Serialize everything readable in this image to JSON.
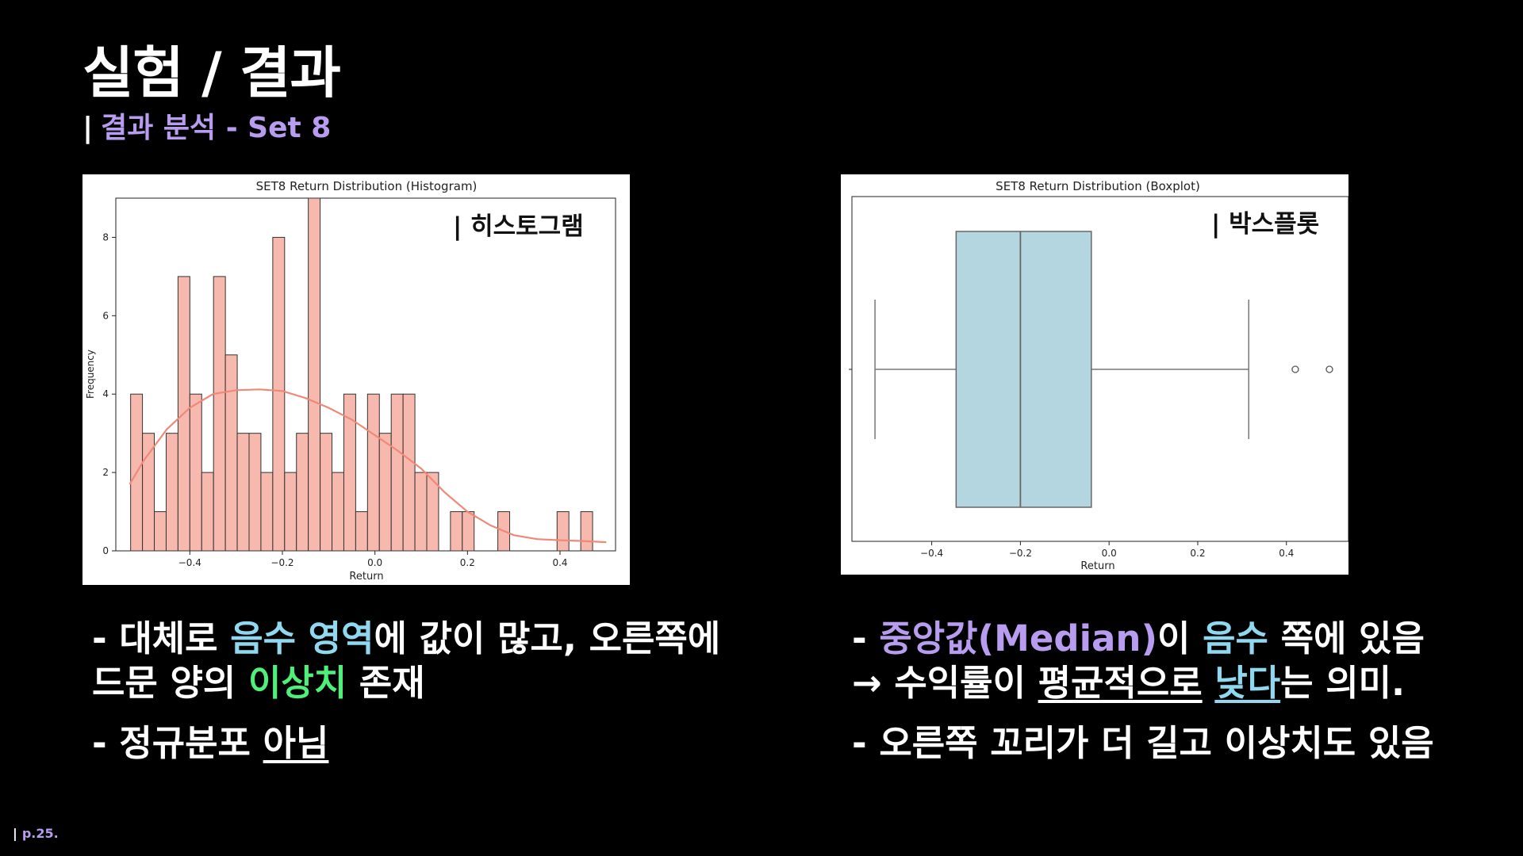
{
  "slide": {
    "title": "실험 / 결과",
    "subtitle_bar": "|",
    "subtitle": "결과 분석 - Set 8",
    "page_bar": "|",
    "page_number": "p.25."
  },
  "colors": {
    "accent_purple": "#b89cf0",
    "accent_cyan": "#8fd8f0",
    "accent_green": "#4ef07a",
    "hist_fill": "#f7b8ae",
    "kde_line": "#f08878",
    "box_fill": "#b3d6e0"
  },
  "chart_data": [
    {
      "type": "bar",
      "title": "SET8 Return Distribution (Histogram)",
      "overlay_label": "| 히스토그램",
      "xlabel": "Return",
      "ylabel": "Frequency",
      "xlim": [
        -0.56,
        0.52
      ],
      "ylim": [
        0,
        9
      ],
      "xticks": [
        -0.4,
        -0.2,
        0.0,
        0.2,
        0.4
      ],
      "xtick_labels": [
        "−0.4",
        "−0.2",
        "0.0",
        "0.2",
        "0.4"
      ],
      "yticks": [
        0,
        2,
        4,
        6,
        8
      ],
      "bin_start": -0.528,
      "bin_width": 0.0256,
      "values": [
        4,
        3,
        1,
        3,
        7,
        4,
        2,
        7,
        5,
        3,
        3,
        2,
        8,
        2,
        3,
        9,
        3,
        2,
        4,
        1,
        4,
        3,
        4,
        4,
        2,
        2,
        0,
        1,
        1,
        0,
        0,
        1,
        0,
        0,
        0,
        0,
        1,
        0,
        1,
        0,
        0
      ],
      "kde": {
        "x": [
          -0.53,
          -0.5,
          -0.45,
          -0.4,
          -0.35,
          -0.3,
          -0.25,
          -0.2,
          -0.15,
          -0.1,
          -0.05,
          0.0,
          0.05,
          0.1,
          0.15,
          0.2,
          0.25,
          0.3,
          0.35,
          0.4,
          0.45,
          0.5
        ],
        "y": [
          1.7,
          2.3,
          3.1,
          3.65,
          4.0,
          4.1,
          4.12,
          4.08,
          3.9,
          3.65,
          3.35,
          2.95,
          2.55,
          2.1,
          1.5,
          1.0,
          0.65,
          0.4,
          0.3,
          0.27,
          0.25,
          0.22
        ]
      }
    },
    {
      "type": "boxplot",
      "title": "SET8 Return Distribution (Boxplot)",
      "overlay_label": "| 박스플롯",
      "xlabel": "Return",
      "xlim": [
        -0.58,
        0.54
      ],
      "xticks": [
        -0.4,
        -0.2,
        0.0,
        0.2,
        0.4
      ],
      "xtick_labels": [
        "−0.4",
        "−0.2",
        "0.0",
        "0.2",
        "0.4"
      ],
      "whisker_low": -0.528,
      "q1": -0.345,
      "median": -0.2,
      "q3": -0.04,
      "whisker_high": 0.315,
      "outliers": [
        0.42,
        0.497
      ]
    }
  ],
  "left_bullets": {
    "l1_a": "- 대체로 ",
    "l1_b": "음수 영역",
    "l1_c": "에 값이 많고, 오른쪽에",
    "l2_a": "드문 양의 ",
    "l2_b": "이상치",
    "l2_c": " 존재",
    "l3_a": "- 정규분포 ",
    "l3_b": "아님"
  },
  "right_bullets": {
    "l1_a": "- ",
    "l1_b": "중앙값(Median)",
    "l1_c": "이 ",
    "l1_d": "음수",
    "l1_e": " 쪽에 있음",
    "l2_a": "→ 수익률이 ",
    "l2_b": "평균적으로",
    "l2_c": " ",
    "l2_d": "낮다",
    "l2_e": "는 의미.",
    "l3": "- 오른쪽 꼬리가 더 길고 이상치도 있음"
  }
}
